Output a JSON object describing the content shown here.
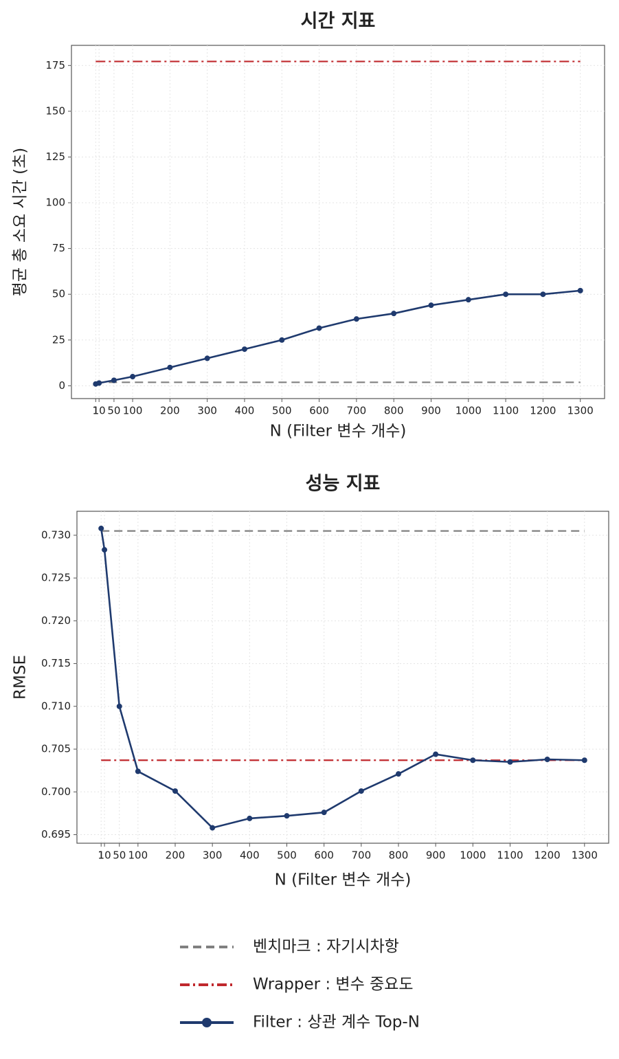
{
  "chart_data": [
    {
      "type": "line",
      "title": "시간 지표",
      "xlabel": "N (Filter 변수 개수)",
      "ylabel": "평균 총 소요 시간 (초)",
      "x": [
        1,
        10,
        50,
        100,
        200,
        300,
        400,
        500,
        600,
        700,
        800,
        900,
        1000,
        1100,
        1200,
        1300
      ],
      "xlim": [
        -64,
        1365
      ],
      "xticks": [
        1,
        10,
        50,
        100,
        200,
        300,
        400,
        500,
        600,
        700,
        800,
        900,
        1000,
        1100,
        1200,
        1300
      ],
      "ylim": [
        -7,
        186
      ],
      "yticks": [
        0,
        25,
        50,
        75,
        100,
        125,
        150,
        175
      ],
      "grid": true,
      "series": [
        {
          "name": "벤치마크 : 자기시차항",
          "color": "#808080",
          "dash": "dashed",
          "marker": false,
          "values": [
            1.9,
            1.9,
            1.9,
            1.9,
            1.9,
            1.9,
            1.9,
            1.9,
            1.9,
            1.9,
            1.9,
            1.9,
            1.9,
            1.9,
            1.9,
            1.9
          ]
        },
        {
          "name": "Wrapper : 변수 중요도",
          "color": "#c0282d",
          "dash": "dashdot",
          "marker": false,
          "values": [
            177.2,
            177.2,
            177.2,
            177.2,
            177.2,
            177.2,
            177.2,
            177.2,
            177.2,
            177.2,
            177.2,
            177.2,
            177.2,
            177.2,
            177.2,
            177.2
          ]
        },
        {
          "name": "Filter : 상관 계수 Top-N",
          "color": "#1f3a6e",
          "dash": "solid",
          "marker": true,
          "values": [
            1,
            1.5,
            3,
            5,
            10,
            15,
            20,
            25,
            31.5,
            36.5,
            39.5,
            44,
            47,
            50,
            50,
            52
          ]
        }
      ]
    },
    {
      "type": "line",
      "title": "성능 지표",
      "xlabel": "N (Filter 변수 개수)",
      "ylabel": "RMSE",
      "x": [
        1,
        10,
        50,
        100,
        200,
        300,
        400,
        500,
        600,
        700,
        800,
        900,
        1000,
        1100,
        1200,
        1300
      ],
      "xlim": [
        -64,
        1365
      ],
      "xticks": [
        1,
        10,
        50,
        100,
        200,
        300,
        400,
        500,
        600,
        700,
        800,
        900,
        1000,
        1100,
        1200,
        1300
      ],
      "ylim": [
        0.694,
        0.7328
      ],
      "yticks": [
        {
          "value": 0.695,
          "label": "0.695"
        },
        {
          "value": 0.7,
          "label": "0.700"
        },
        {
          "value": 0.705,
          "label": "0.705"
        },
        {
          "value": 0.71,
          "label": "0.710"
        },
        {
          "value": 0.715,
          "label": "0.715"
        },
        {
          "value": 0.72,
          "label": "0.720"
        },
        {
          "value": 0.725,
          "label": "0.725"
        },
        {
          "value": 0.73,
          "label": "0.730"
        }
      ],
      "grid": true,
      "series": [
        {
          "color": "#808080",
          "dash": "dashed",
          "marker": false,
          "values": [
            0.7305,
            0.7305,
            0.7305,
            0.7305,
            0.7305,
            0.7305,
            0.7305,
            0.7305,
            0.7305,
            0.7305,
            0.7305,
            0.7305,
            0.7305,
            0.7305,
            0.7305,
            0.7305
          ]
        },
        {
          "color": "#c0282d",
          "dash": "dashdot",
          "marker": false,
          "values": [
            0.7037,
            0.7037,
            0.7037,
            0.7037,
            0.7037,
            0.7037,
            0.7037,
            0.7037,
            0.7037,
            0.7037,
            0.7037,
            0.7037,
            0.7037,
            0.7037,
            0.7037,
            0.7037
          ]
        },
        {
          "color": "#1f3a6e",
          "dash": "solid",
          "marker": true,
          "values": [
            0.7308,
            0.7283,
            0.71,
            0.7024,
            0.7001,
            0.6958,
            0.6969,
            0.6972,
            0.6976,
            0.7001,
            0.7021,
            0.7044,
            0.7037,
            0.7035,
            0.7038,
            0.7037
          ]
        }
      ]
    }
  ]
}
